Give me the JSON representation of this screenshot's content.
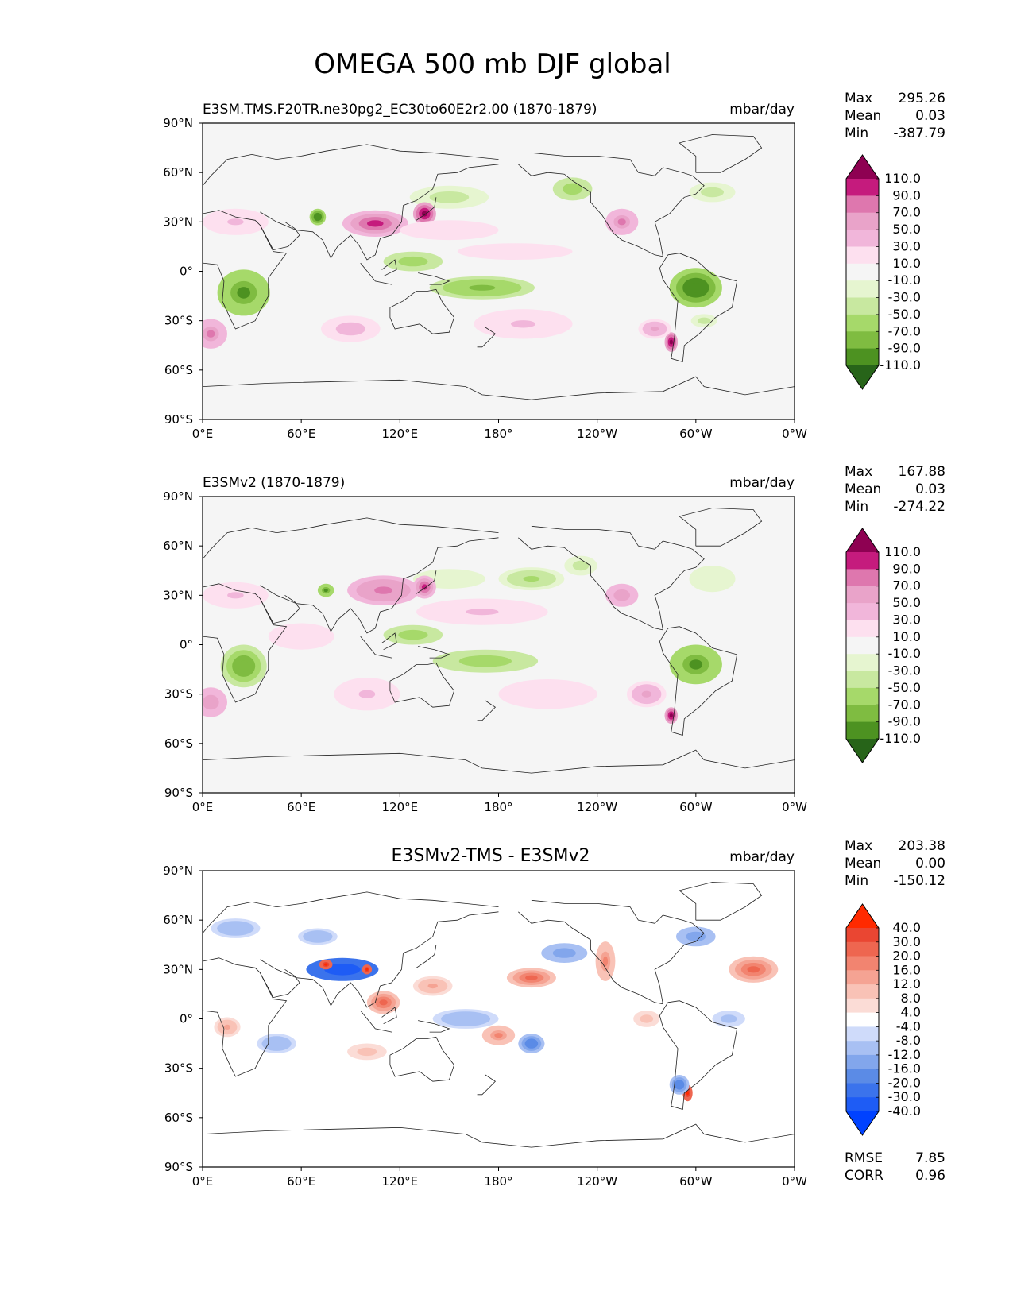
{
  "title": "OMEGA 500 mb DJF global",
  "colors": {
    "background": "#ffffff",
    "ocean_neutral": "#f5f5f5",
    "coast": "#222222",
    "green_scale": [
      "#276419",
      "#4d9221",
      "#7fbc41",
      "#a6d96a",
      "#c8e8a0",
      "#e6f5d0",
      "#f5f5f5"
    ],
    "pink_scale": [
      "#f5f5f5",
      "#fde0ef",
      "#f1b6da",
      "#e9a3c9",
      "#de77ae",
      "#c51b7d",
      "#8e0152"
    ],
    "blue_scale": [
      "#0042ff",
      "#1e5cf5",
      "#3b73ec",
      "#5b8be6",
      "#82a6ec",
      "#a8c0f3",
      "#cfdbfa",
      "#ffffff"
    ],
    "red_scale": [
      "#ffffff",
      "#fbdcd6",
      "#f9c2b6",
      "#f5a393",
      "#f28470",
      "#ee6650",
      "#ea4632",
      "#ff2a00"
    ]
  },
  "chart_data": [
    {
      "type": "heatmap",
      "panel": "test",
      "title": "E3SM.TMS.F20TR.ne30pg2_EC30to60E2r2.00 (1870-1879)",
      "units": "mbar/day",
      "stats": {
        "max": "295.26",
        "mean": "0.03",
        "min": "-387.79"
      },
      "stat_labels": {
        "max": "Max",
        "mean": "Mean",
        "min": "Min"
      },
      "colorbar_levels": [
        "110.0",
        "90.0",
        "70.0",
        "50.0",
        "30.0",
        "10.0",
        "-10.0",
        "-30.0",
        "-50.0",
        "-70.0",
        "-90.0",
        "-110.0"
      ],
      "lat_ticks": [
        "90°N",
        "60°N",
        "30°N",
        "0°",
        "30°S",
        "60°S",
        "90°S"
      ],
      "lon_ticks": [
        "0°E",
        "60°E",
        "120°E",
        "180°",
        "120°W",
        "60°W",
        "0°W"
      ],
      "features": [
        {
          "lon": 25,
          "lat": -13,
          "value": -100,
          "rx": 16,
          "ry": 14
        },
        {
          "lon": 128,
          "lat": 6,
          "value": -65,
          "rx": 18,
          "ry": 6
        },
        {
          "lon": 170,
          "lat": -10,
          "value": -75,
          "rx": 32,
          "ry": 7
        },
        {
          "lon": 300,
          "lat": -10,
          "value": -110,
          "rx": 16,
          "ry": 12
        },
        {
          "lon": 150,
          "lat": 45,
          "value": -40,
          "rx": 24,
          "ry": 7
        },
        {
          "lon": 225,
          "lat": 50,
          "value": -60,
          "rx": 12,
          "ry": 7
        },
        {
          "lon": 310,
          "lat": 48,
          "value": -40,
          "rx": 14,
          "ry": 6
        },
        {
          "lon": 70,
          "lat": 33,
          "value": -110,
          "rx": 5,
          "ry": 5
        },
        {
          "lon": 305,
          "lat": -30,
          "value": -40,
          "rx": 8,
          "ry": 4
        },
        {
          "lon": 20,
          "lat": 30,
          "value": 30,
          "rx": 20,
          "ry": 8
        },
        {
          "lon": 105,
          "lat": 29,
          "value": 90,
          "rx": 20,
          "ry": 8
        },
        {
          "lon": 135,
          "lat": 35,
          "value": 110,
          "rx": 7,
          "ry": 7
        },
        {
          "lon": 255,
          "lat": 30,
          "value": 70,
          "rx": 10,
          "ry": 8
        },
        {
          "lon": 5,
          "lat": -38,
          "value": 70,
          "rx": 10,
          "ry": 9
        },
        {
          "lon": 90,
          "lat": -35,
          "value": 40,
          "rx": 18,
          "ry": 8
        },
        {
          "lon": 195,
          "lat": -32,
          "value": 30,
          "rx": 30,
          "ry": 9
        },
        {
          "lon": 285,
          "lat": -43,
          "value": 110,
          "rx": 4,
          "ry": 6
        },
        {
          "lon": 275,
          "lat": -35,
          "value": 50,
          "rx": 10,
          "ry": 6
        },
        {
          "lon": 150,
          "lat": 25,
          "value": 25,
          "rx": 30,
          "ry": 6
        },
        {
          "lon": 190,
          "lat": 12,
          "value": 20,
          "rx": 35,
          "ry": 5
        }
      ]
    },
    {
      "type": "heatmap",
      "panel": "reference",
      "title": "E3SMv2 (1870-1879)",
      "units": "mbar/day",
      "stats": {
        "max": "167.88",
        "mean": "0.03",
        "min": "-274.22"
      },
      "stat_labels": {
        "max": "Max",
        "mean": "Mean",
        "min": "Min"
      },
      "colorbar_levels": [
        "110.0",
        "90.0",
        "70.0",
        "50.0",
        "30.0",
        "10.0",
        "-10.0",
        "-30.0",
        "-50.0",
        "-70.0",
        "-90.0",
        "-110.0"
      ],
      "lat_ticks": [
        "90°N",
        "60°N",
        "30°N",
        "0°",
        "30°S",
        "60°S",
        "90°S"
      ],
      "lon_ticks": [
        "0°E",
        "60°E",
        "120°E",
        "180°",
        "120°W",
        "60°W",
        "0°W"
      ],
      "features": [
        {
          "lon": 25,
          "lat": -13,
          "value": -90,
          "rx": 14,
          "ry": 13
        },
        {
          "lon": 128,
          "lat": 6,
          "value": -60,
          "rx": 18,
          "ry": 6
        },
        {
          "lon": 172,
          "lat": -10,
          "value": -70,
          "rx": 32,
          "ry": 7
        },
        {
          "lon": 300,
          "lat": -12,
          "value": -100,
          "rx": 16,
          "ry": 12
        },
        {
          "lon": 200,
          "lat": 40,
          "value": -55,
          "rx": 20,
          "ry": 7
        },
        {
          "lon": 230,
          "lat": 48,
          "value": -40,
          "rx": 10,
          "ry": 6
        },
        {
          "lon": 75,
          "lat": 33,
          "value": -100,
          "rx": 5,
          "ry": 4
        },
        {
          "lon": 150,
          "lat": 40,
          "value": -30,
          "rx": 22,
          "ry": 6
        },
        {
          "lon": 310,
          "lat": 40,
          "value": -30,
          "rx": 14,
          "ry": 8
        },
        {
          "lon": 20,
          "lat": 30,
          "value": 30,
          "rx": 20,
          "ry": 8
        },
        {
          "lon": 110,
          "lat": 33,
          "value": 80,
          "rx": 22,
          "ry": 9
        },
        {
          "lon": 135,
          "lat": 35,
          "value": 90,
          "rx": 7,
          "ry": 7
        },
        {
          "lon": 255,
          "lat": 30,
          "value": 60,
          "rx": 10,
          "ry": 7
        },
        {
          "lon": 5,
          "lat": -35,
          "value": 60,
          "rx": 10,
          "ry": 9
        },
        {
          "lon": 100,
          "lat": -30,
          "value": 35,
          "rx": 20,
          "ry": 10
        },
        {
          "lon": 210,
          "lat": -30,
          "value": 25,
          "rx": 30,
          "ry": 9
        },
        {
          "lon": 285,
          "lat": -43,
          "value": 110,
          "rx": 4,
          "ry": 5
        },
        {
          "lon": 270,
          "lat": -30,
          "value": 50,
          "rx": 12,
          "ry": 8
        },
        {
          "lon": 170,
          "lat": 20,
          "value": 30,
          "rx": 40,
          "ry": 8
        },
        {
          "lon": 60,
          "lat": 5,
          "value": 25,
          "rx": 20,
          "ry": 8
        }
      ]
    },
    {
      "type": "heatmap",
      "panel": "difference",
      "title": "E3SMv2-TMS - E3SMv2",
      "units": "mbar/day",
      "stats": {
        "max": "203.38",
        "mean": "0.00",
        "min": "-150.12"
      },
      "stat_labels": {
        "max": "Max",
        "mean": "Mean",
        "min": "Min"
      },
      "metrics": {
        "rmse": "7.85",
        "corr": "0.96"
      },
      "metric_labels": {
        "rmse": "RMSE",
        "corr": "CORR"
      },
      "colorbar_levels": [
        "40.0",
        "30.0",
        "20.0",
        "16.0",
        "12.0",
        "8.0",
        "4.0",
        "-4.0",
        "-8.0",
        "-12.0",
        "-16.0",
        "-20.0",
        "-30.0",
        "-40.0"
      ],
      "lat_ticks": [
        "90°N",
        "60°N",
        "30°N",
        "0°",
        "30°S",
        "60°S",
        "90°S"
      ],
      "lon_ticks": [
        "0°E",
        "60°E",
        "120°E",
        "180°",
        "120°W",
        "60°W",
        "0°W"
      ],
      "features": [
        {
          "lon": 85,
          "lat": 30,
          "value": -40,
          "rx": 22,
          "ry": 7
        },
        {
          "lon": 75,
          "lat": 33,
          "value": 40,
          "rx": 4,
          "ry": 3
        },
        {
          "lon": 100,
          "lat": 30,
          "value": 40,
          "rx": 3,
          "ry": 3
        },
        {
          "lon": 110,
          "lat": 10,
          "value": 20,
          "rx": 10,
          "ry": 7
        },
        {
          "lon": 140,
          "lat": 20,
          "value": 12,
          "rx": 12,
          "ry": 6
        },
        {
          "lon": 200,
          "lat": 25,
          "value": 20,
          "rx": 15,
          "ry": 6
        },
        {
          "lon": 220,
          "lat": 40,
          "value": -16,
          "rx": 14,
          "ry": 6
        },
        {
          "lon": 245,
          "lat": 35,
          "value": 16,
          "rx": 6,
          "ry": 12
        },
        {
          "lon": 335,
          "lat": 30,
          "value": 20,
          "rx": 15,
          "ry": 8
        },
        {
          "lon": 20,
          "lat": 55,
          "value": -12,
          "rx": 15,
          "ry": 6
        },
        {
          "lon": 160,
          "lat": 0,
          "value": -12,
          "rx": 20,
          "ry": 6
        },
        {
          "lon": 200,
          "lat": -15,
          "value": -20,
          "rx": 8,
          "ry": 6
        },
        {
          "lon": 180,
          "lat": -10,
          "value": 16,
          "rx": 10,
          "ry": 6
        },
        {
          "lon": 45,
          "lat": -15,
          "value": -12,
          "rx": 12,
          "ry": 6
        },
        {
          "lon": 15,
          "lat": -5,
          "value": 12,
          "rx": 8,
          "ry": 6
        },
        {
          "lon": 295,
          "lat": -45,
          "value": 40,
          "rx": 3,
          "ry": 5
        },
        {
          "lon": 290,
          "lat": -40,
          "value": -20,
          "rx": 6,
          "ry": 6
        },
        {
          "lon": 100,
          "lat": -20,
          "value": 10,
          "rx": 12,
          "ry": 5
        },
        {
          "lon": 320,
          "lat": 0,
          "value": -10,
          "rx": 10,
          "ry": 5
        },
        {
          "lon": 270,
          "lat": 0,
          "value": 10,
          "rx": 8,
          "ry": 5
        },
        {
          "lon": 70,
          "lat": 50,
          "value": -12,
          "rx": 12,
          "ry": 5
        },
        {
          "lon": 300,
          "lat": 50,
          "value": -16,
          "rx": 12,
          "ry": 6
        }
      ]
    }
  ]
}
